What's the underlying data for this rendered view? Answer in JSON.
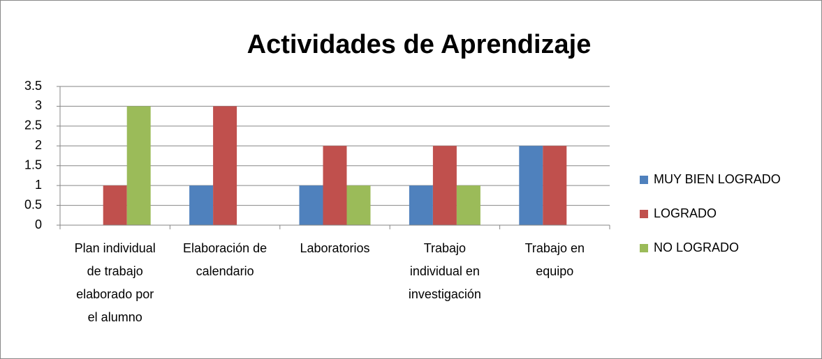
{
  "chart_data": {
    "type": "bar",
    "title": "Actividades de Aprendizaje",
    "categories": [
      "Plan individual de trabajo elaborado por el alumno",
      "Elaboración de calendario",
      "Laboratorios",
      "Trabajo individual en investigación",
      "Trabajo en equipo"
    ],
    "series": [
      {
        "name": "MUY BIEN LOGRADO",
        "color": "#4f81bd",
        "values": [
          0,
          1,
          1,
          1,
          2
        ]
      },
      {
        "name": "LOGRADO",
        "color": "#c0504d",
        "values": [
          1,
          3,
          2,
          2,
          2
        ]
      },
      {
        "name": "NO LOGRADO",
        "color": "#9bbb59",
        "values": [
          3,
          0,
          1,
          1,
          0
        ]
      }
    ],
    "ylim": [
      0,
      3.5
    ],
    "yticks": [
      0,
      0.5,
      1,
      1.5,
      2,
      2.5,
      3,
      3.5
    ],
    "grid": true,
    "legend": "right"
  }
}
